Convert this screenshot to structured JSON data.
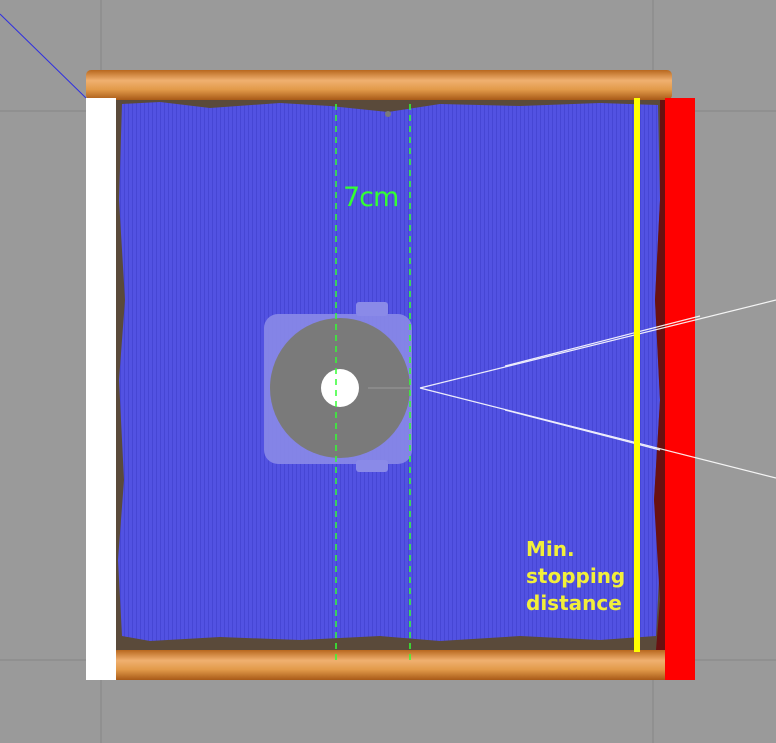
{
  "annotations": {
    "width_label": "7cm",
    "stop_label_lines": [
      "Min.",
      "stopping",
      "distance"
    ]
  },
  "colors": {
    "background": "#9a9a9a",
    "grid": "#878787",
    "laser_fill": "#5050e0",
    "wood": "#d08a3c",
    "left_wall": "#ffffff",
    "right_wall": "#ff0000",
    "stop_line": "#ffff00",
    "guide_lines": "#33ff33",
    "robot_body": "#7a7a7a",
    "robot_chassis": "#8a8ae8"
  }
}
